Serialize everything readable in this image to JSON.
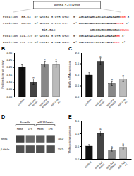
{
  "chart_data": [
    {
      "type": "diagram",
      "title": "Wnt8a 3'-UTRmut",
      "color": "#ff0000",
      "sequences": [
        {
          "text": "Position  88-94  of Wnt8a 3 UTR WT1:  5' AGCAGCAGCAGCAGCAGAGAGG",
          "highlight": "GGG",
          "end": " 3'"
        },
        {
          "text": "Position  88-94  of Wnt8a 3 UTR MT:   5' AGCAGCAGCAGCAGCAGAGA",
          "highlight": "CCCA",
          "end": " 3'"
        },
        {
          "text": "                     miR-344:                  UGCGGUGUCGGUCGUC",
          "highlight": "UCUCC"
        },
        {
          "text": "Position 221-227 of Wnt8a 3 UTR WT2:  5' GGCAGCACAGCAGCAGAGAG",
          "highlight": "GG",
          "end": " 3'"
        },
        {
          "text": "Position 221-227 of Wnt8a 3 UTR MT2:  5' GGCAGCACAGCAGCAGAGA",
          "highlight": "CCC",
          "end": " 3'"
        }
      ]
    },
    {
      "type": "bar",
      "label": "B",
      "ylabel": "Relative luciferase activity",
      "categories": [
        "Control",
        "miR-344\nmimic",
        "miR-344\ninhibitor",
        "miR-344\nnc"
      ],
      "values": [
        0.2,
        0.1,
        0.22,
        0.22
      ],
      "errors": [
        0.02,
        0.02,
        0.02,
        0.02
      ],
      "colors": [
        "#111111",
        "#444444",
        "#888888",
        "#bbbbbb"
      ],
      "annotations": [
        null,
        "a",
        "a",
        "a"
      ],
      "ylim": [
        0,
        0.3
      ],
      "yticks": [
        {
          "value": 0,
          "label": "0.00"
        },
        0.05,
        {
          "value": 0.1,
          "label": "0.10"
        },
        0.15,
        {
          "value": 0.2,
          "label": "0.20"
        },
        0.25,
        {
          "value": 0.3,
          "label": "0.30"
        }
      ]
    },
    {
      "type": "bar",
      "label": "C",
      "ylabel": "Wnt8a mRNA expression",
      "categories": [
        "Control",
        "miR-344\nmimic",
        "miR-344\ninhibitor",
        "miR-344\nnc"
      ],
      "values": [
        1.0,
        1.6,
        0.6,
        0.8
      ],
      "errors": [
        0.1,
        0.15,
        0.1,
        0.1
      ],
      "colors": [
        "#111111",
        "#444444",
        "#888888",
        "#bbbbbb"
      ],
      "annotations": [
        null,
        "a",
        "a",
        "a"
      ],
      "ylim": [
        0,
        2.0
      ],
      "yticks": [
        {
          "value": 0,
          "label": "0.0"
        },
        0.5,
        {
          "value": 1,
          "label": "1.0"
        },
        1.5,
        {
          "value": 2,
          "label": "2.0"
        }
      ]
    },
    {
      "type": "blot",
      "label": "D",
      "groups": [
        "Scramble",
        "miR-344 mimic"
      ],
      "subgroups": [
        "HBSS",
        "LPS",
        "HBSS",
        "LPS"
      ],
      "bands": [
        "Wnt8a",
        "β-tubulin"
      ],
      "band_sizes": [
        "54KD",
        "55KD"
      ],
      "intensities": [
        [
          0.15,
          0.12,
          0.13,
          0.14
        ],
        [
          0.14,
          0.14,
          0.14,
          0.14
        ]
      ]
    },
    {
      "type": "bar",
      "label": "E",
      "ylabel": "Wnt8a protein expression",
      "categories": [
        "Control",
        "miR-344\nmimic",
        "miR-344\ninhibitor",
        "miR-344\nnc"
      ],
      "values": [
        0.5,
        1.0,
        0.35,
        0.45
      ],
      "errors": [
        0.06,
        0.1,
        0.05,
        0.06
      ],
      "colors": [
        "#111111",
        "#444444",
        "#888888",
        "#bbbbbb"
      ],
      "annotations": [
        null,
        "a",
        "a",
        "a"
      ],
      "ylim": [
        0,
        1.5
      ],
      "yticks": [
        {
          "value": 0,
          "label": "0.0"
        },
        0.5,
        {
          "value": 1,
          "label": "1.0"
        },
        {
          "value": 1.5,
          "label": "1.5"
        }
      ]
    }
  ]
}
